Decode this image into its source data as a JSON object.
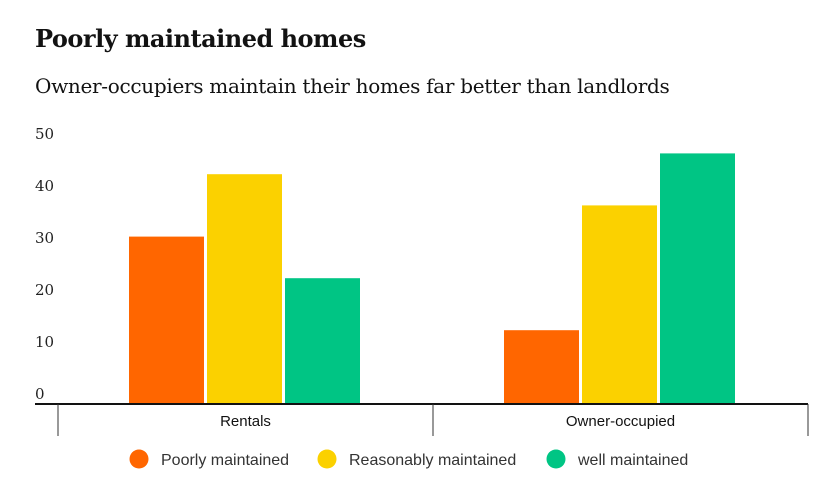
{
  "title": "Poorly maintained homes",
  "subtitle": "Owner-occupiers maintain their homes far better than landlords",
  "chart_data": {
    "type": "bar",
    "title": "Poorly maintained homes",
    "subtitle": "Owner-occupiers maintain their homes far better than landlords",
    "categories": [
      "Rentals",
      "Owner-occupied"
    ],
    "series": [
      {
        "name": "Poorly maintained",
        "color": "#ff6600",
        "values": [
          32,
          14
        ]
      },
      {
        "name": "Reasonably maintained",
        "color": "#fbd100",
        "values": [
          44,
          38
        ]
      },
      {
        "name": "well maintained",
        "color": "#00c584",
        "values": [
          24,
          48
        ]
      }
    ],
    "yticks": [
      "0",
      "10",
      "20",
      "30",
      "40",
      "50"
    ],
    "ylim": [
      0,
      50
    ],
    "xlabel": "",
    "ylabel": "",
    "grid": false,
    "legend": "bottom"
  }
}
